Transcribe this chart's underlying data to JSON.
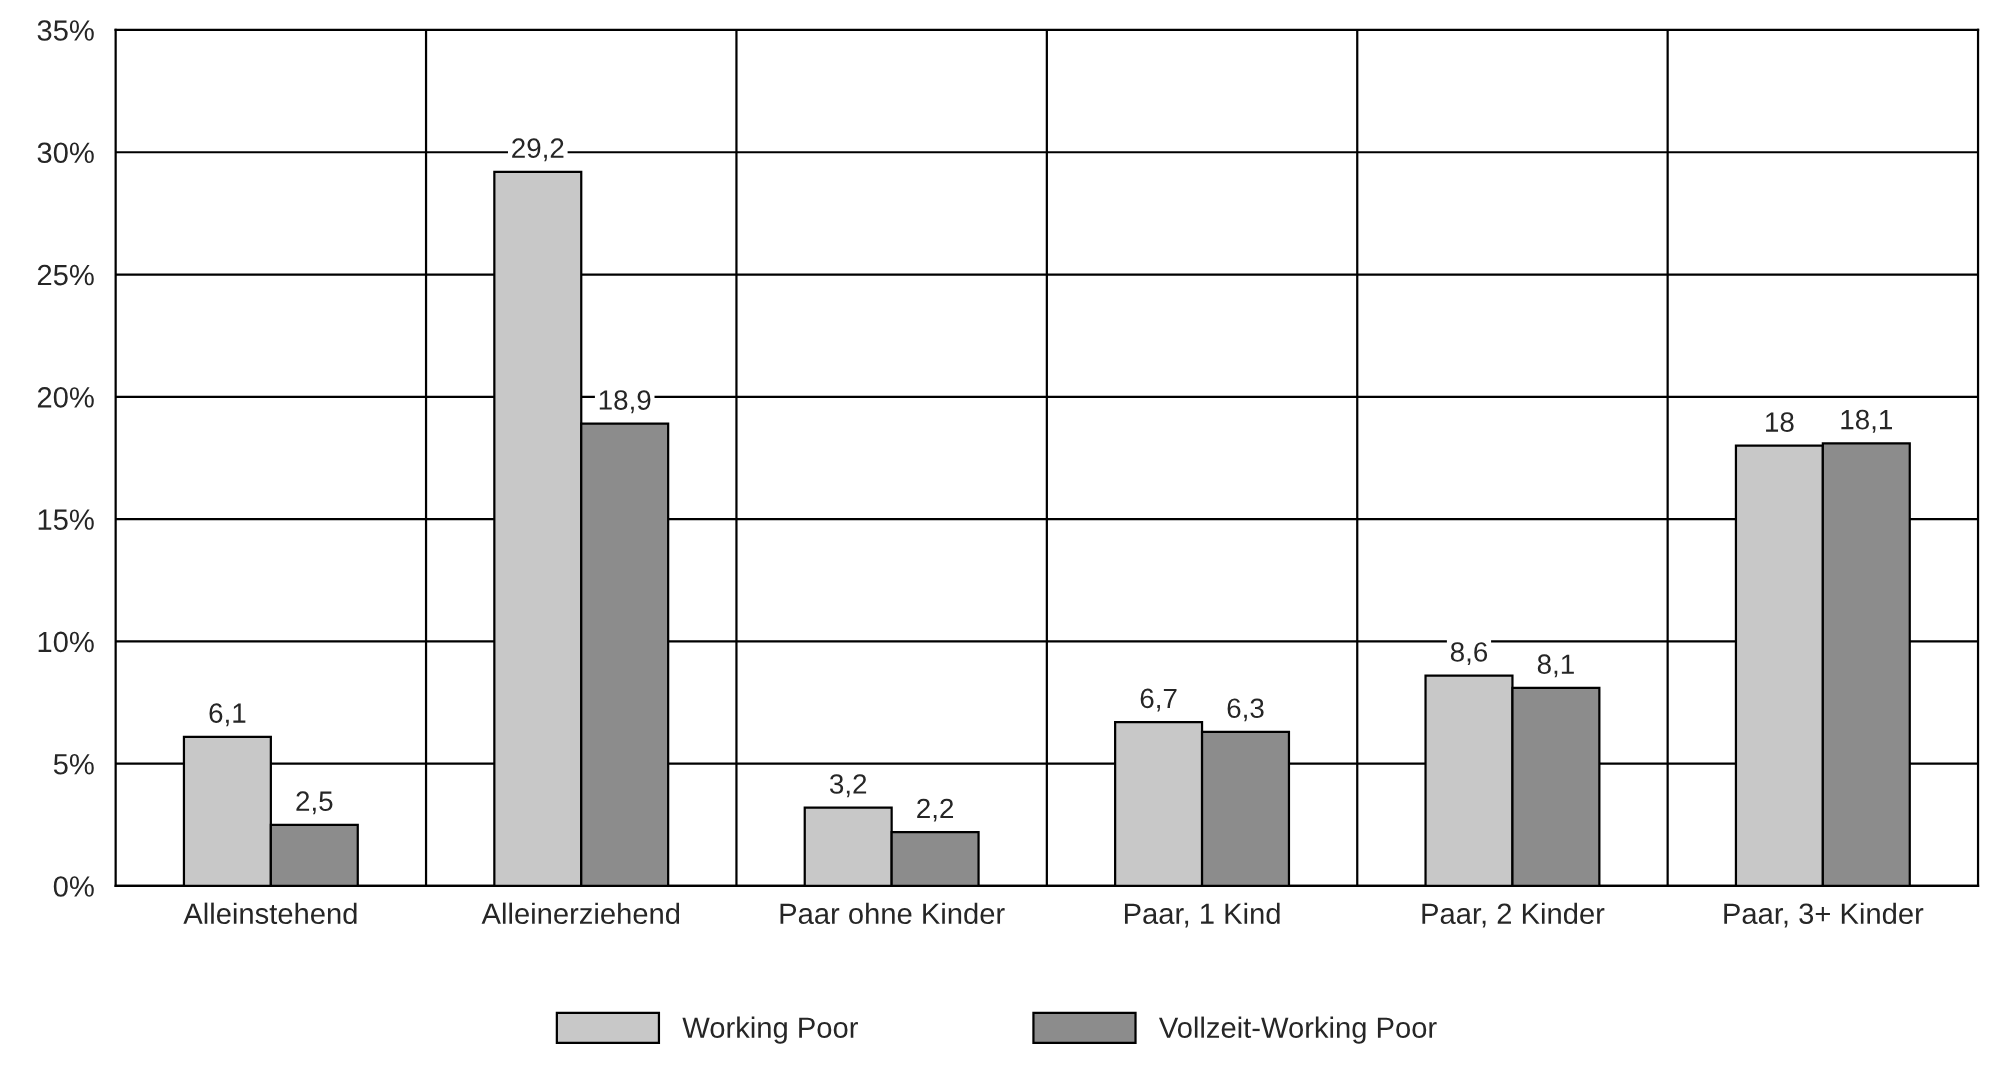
{
  "chart_data": {
    "type": "bar",
    "categories": [
      "Alleinstehend",
      "Alleinerziehend",
      "Paar ohne Kinder",
      "Paar, 1 Kind",
      "Paar, 2 Kinder",
      "Paar, 3+ Kinder"
    ],
    "series": [
      {
        "name": "Working Poor",
        "color": "#c8c8c8",
        "values": [
          6.1,
          29.2,
          3.2,
          6.7,
          8.6,
          18
        ],
        "value_labels": [
          "6,1",
          "29,2",
          "3,2",
          "6,7",
          "8,6",
          "18"
        ]
      },
      {
        "name": "Vollzeit-Working Poor",
        "color": "#8c8c8c",
        "values": [
          2.5,
          18.9,
          2.2,
          6.3,
          8.1,
          18.1
        ],
        "value_labels": [
          "2,5",
          "18,9",
          "2,2",
          "6,3",
          "8,1",
          "18,1"
        ]
      }
    ],
    "ylim": [
      0,
      35
    ],
    "yticks": [
      {
        "value": 0,
        "label": "0%"
      },
      {
        "value": 5,
        "label": "5%"
      },
      {
        "value": 10,
        "label": "10%"
      },
      {
        "value": 15,
        "label": "15%"
      },
      {
        "value": 20,
        "label": "20%"
      },
      {
        "value": 25,
        "label": "25%"
      },
      {
        "value": 30,
        "label": "30%"
      },
      {
        "value": 35,
        "label": "35%"
      }
    ],
    "grid": true,
    "legend": "bottom"
  }
}
